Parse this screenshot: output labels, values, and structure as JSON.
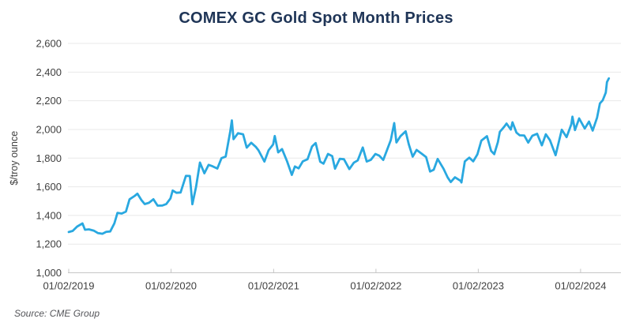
{
  "title": "COMEX GC Gold Spot Month Prices",
  "source": "Source: CME Group",
  "colors": {
    "line": "#29a8e0",
    "title": "#1f3557",
    "axis_text": "#404040",
    "gridline": "#e8e8e8",
    "axis_line": "#c6c6c6",
    "source_text": "#55565a"
  },
  "chart_data": {
    "type": "line",
    "title": "COMEX GC Gold Spot Month Prices",
    "xlabel": "",
    "ylabel": "$/troy ounce",
    "ylim": [
      1000,
      2600
    ],
    "y_ticks": [
      1000,
      1200,
      1400,
      1600,
      1800,
      2000,
      2200,
      2400,
      2600
    ],
    "x_tick_labels": [
      "01/02/2019",
      "01/02/2020",
      "01/02/2021",
      "01/02/2022",
      "01/02/2023",
      "01/02/2024"
    ],
    "x_range": [
      "2019-01-02",
      "2024-04-30"
    ],
    "grid": "horizontal-only",
    "legend": "none",
    "series": [
      {
        "name": "GC Gold Spot Month Price ($/troy ounce)",
        "points": [
          [
            "2019-01-02",
            1284
          ],
          [
            "2019-01-16",
            1292
          ],
          [
            "2019-02-01",
            1322
          ],
          [
            "2019-02-20",
            1344
          ],
          [
            "2019-03-01",
            1300
          ],
          [
            "2019-03-15",
            1303
          ],
          [
            "2019-04-01",
            1294
          ],
          [
            "2019-04-16",
            1277
          ],
          [
            "2019-05-02",
            1272
          ],
          [
            "2019-05-16",
            1286
          ],
          [
            "2019-05-30",
            1288
          ],
          [
            "2019-06-14",
            1345
          ],
          [
            "2019-06-25",
            1418
          ],
          [
            "2019-07-10",
            1413
          ],
          [
            "2019-07-25",
            1427
          ],
          [
            "2019-08-07",
            1513
          ],
          [
            "2019-08-26",
            1537
          ],
          [
            "2019-09-04",
            1552
          ],
          [
            "2019-09-18",
            1508
          ],
          [
            "2019-09-30",
            1479
          ],
          [
            "2019-10-15",
            1488
          ],
          [
            "2019-10-31",
            1513
          ],
          [
            "2019-11-15",
            1468
          ],
          [
            "2019-12-02",
            1469
          ],
          [
            "2019-12-16",
            1480
          ],
          [
            "2019-12-31",
            1519
          ],
          [
            "2020-01-08",
            1574
          ],
          [
            "2020-01-21",
            1558
          ],
          [
            "2020-02-05",
            1560
          ],
          [
            "2020-02-24",
            1676
          ],
          [
            "2020-03-09",
            1675
          ],
          [
            "2020-03-18",
            1478
          ],
          [
            "2020-03-31",
            1597
          ],
          [
            "2020-04-14",
            1769
          ],
          [
            "2020-04-30",
            1694
          ],
          [
            "2020-05-15",
            1753
          ],
          [
            "2020-05-29",
            1743
          ],
          [
            "2020-06-15",
            1727
          ],
          [
            "2020-06-30",
            1800
          ],
          [
            "2020-07-15",
            1811
          ],
          [
            "2020-07-31",
            1985
          ],
          [
            "2020-08-06",
            2063
          ],
          [
            "2020-08-12",
            1932
          ],
          [
            "2020-08-28",
            1974
          ],
          [
            "2020-09-15",
            1966
          ],
          [
            "2020-09-28",
            1873
          ],
          [
            "2020-10-14",
            1907
          ],
          [
            "2020-10-30",
            1879
          ],
          [
            "2020-11-09",
            1854
          ],
          [
            "2020-11-30",
            1776
          ],
          [
            "2020-12-15",
            1855
          ],
          [
            "2020-12-31",
            1895
          ],
          [
            "2021-01-06",
            1954
          ],
          [
            "2021-01-18",
            1840
          ],
          [
            "2021-02-01",
            1863
          ],
          [
            "2021-02-19",
            1777
          ],
          [
            "2021-03-08",
            1683
          ],
          [
            "2021-03-19",
            1742
          ],
          [
            "2021-04-01",
            1728
          ],
          [
            "2021-04-16",
            1777
          ],
          [
            "2021-05-03",
            1792
          ],
          [
            "2021-05-19",
            1881
          ],
          [
            "2021-06-01",
            1905
          ],
          [
            "2021-06-17",
            1775
          ],
          [
            "2021-06-29",
            1761
          ],
          [
            "2021-07-15",
            1829
          ],
          [
            "2021-07-30",
            1814
          ],
          [
            "2021-08-09",
            1726
          ],
          [
            "2021-08-26",
            1795
          ],
          [
            "2021-09-10",
            1792
          ],
          [
            "2021-09-29",
            1723
          ],
          [
            "2021-10-15",
            1768
          ],
          [
            "2021-10-29",
            1784
          ],
          [
            "2021-11-16",
            1874
          ],
          [
            "2021-11-30",
            1776
          ],
          [
            "2021-12-15",
            1788
          ],
          [
            "2021-12-31",
            1829
          ],
          [
            "2022-01-14",
            1817
          ],
          [
            "2022-01-28",
            1787
          ],
          [
            "2022-02-11",
            1859
          ],
          [
            "2022-02-24",
            1926
          ],
          [
            "2022-03-08",
            2044
          ],
          [
            "2022-03-16",
            1909
          ],
          [
            "2022-03-31",
            1954
          ],
          [
            "2022-04-18",
            1987
          ],
          [
            "2022-04-29",
            1897
          ],
          [
            "2022-05-13",
            1810
          ],
          [
            "2022-05-27",
            1857
          ],
          [
            "2022-06-13",
            1832
          ],
          [
            "2022-06-30",
            1807
          ],
          [
            "2022-07-14",
            1706
          ],
          [
            "2022-07-27",
            1719
          ],
          [
            "2022-08-10",
            1794
          ],
          [
            "2022-08-31",
            1726
          ],
          [
            "2022-09-15",
            1665
          ],
          [
            "2022-09-26",
            1633
          ],
          [
            "2022-10-11",
            1666
          ],
          [
            "2022-10-31",
            1641
          ],
          [
            "2022-11-03",
            1630
          ],
          [
            "2022-11-15",
            1777
          ],
          [
            "2022-12-01",
            1803
          ],
          [
            "2022-12-15",
            1777
          ],
          [
            "2022-12-30",
            1826
          ],
          [
            "2023-01-13",
            1922
          ],
          [
            "2023-02-02",
            1953
          ],
          [
            "2023-02-17",
            1850
          ],
          [
            "2023-02-28",
            1827
          ],
          [
            "2023-03-13",
            1911
          ],
          [
            "2023-03-20",
            1983
          ],
          [
            "2023-04-05",
            2020
          ],
          [
            "2023-04-13",
            2041
          ],
          [
            "2023-04-28",
            1999
          ],
          [
            "2023-05-04",
            2050
          ],
          [
            "2023-05-18",
            1978
          ],
          [
            "2023-05-30",
            1959
          ],
          [
            "2023-06-15",
            1958
          ],
          [
            "2023-06-29",
            1908
          ],
          [
            "2023-07-14",
            1956
          ],
          [
            "2023-07-31",
            1970
          ],
          [
            "2023-08-17",
            1889
          ],
          [
            "2023-08-31",
            1966
          ],
          [
            "2023-09-15",
            1924
          ],
          [
            "2023-10-05",
            1820
          ],
          [
            "2023-10-27",
            1998
          ],
          [
            "2023-11-13",
            1946
          ],
          [
            "2023-11-30",
            2036
          ],
          [
            "2023-12-04",
            2089
          ],
          [
            "2023-12-13",
            1995
          ],
          [
            "2023-12-28",
            2077
          ],
          [
            "2024-01-17",
            2006
          ],
          [
            "2024-02-01",
            2055
          ],
          [
            "2024-02-14",
            1992
          ],
          [
            "2024-03-01",
            2083
          ],
          [
            "2024-03-11",
            2182
          ],
          [
            "2024-03-21",
            2203
          ],
          [
            "2024-04-01",
            2257
          ],
          [
            "2024-04-05",
            2330
          ],
          [
            "2024-04-12",
            2356
          ]
        ]
      }
    ]
  }
}
